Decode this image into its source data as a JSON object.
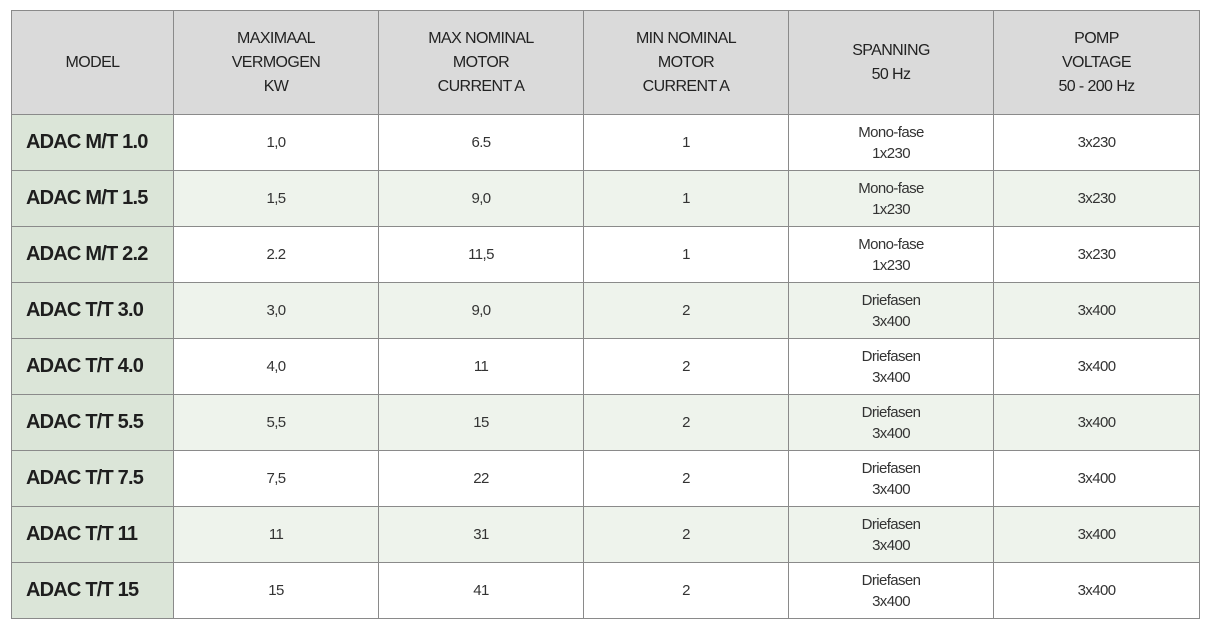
{
  "table": {
    "header": [
      "MODEL",
      "MAXIMAAL\nVERMOGEN\nKW",
      "MAX NOMINAL\nMOTOR\nCURRENT A",
      "MIN NOMINAL\nMOTOR\nCURRENT A",
      "SPANNING\n50 Hz",
      "POMP\nVOLTAGE\n50 - 200 Hz"
    ],
    "rows": [
      [
        "ADAC M/T 1.0",
        "1,0",
        "6.5",
        "1",
        "Mono-fase\n1x230",
        "3x230"
      ],
      [
        "ADAC M/T 1.5",
        "1,5",
        "9,0",
        "1",
        "Mono-fase\n1x230",
        "3x230"
      ],
      [
        "ADAC M/T 2.2",
        "2.2",
        "11,5",
        "1",
        "Mono-fase\n1x230",
        "3x230"
      ],
      [
        "ADAC T/T 3.0",
        "3,0",
        "9,0",
        "2",
        "Driefasen\n3x400",
        "3x400"
      ],
      [
        "ADAC T/T 4.0",
        "4,0",
        "11",
        "2",
        "Driefasen\n3x400",
        "3x400"
      ],
      [
        "ADAC T/T 5.5",
        "5,5",
        "15",
        "2",
        "Driefasen\n3x400",
        "3x400"
      ],
      [
        "ADAC T/T 7.5",
        "7,5",
        "22",
        "2",
        "Driefasen\n3x400",
        "3x400"
      ],
      [
        "ADAC T/T 11",
        "11",
        "31",
        "2",
        "Driefasen\n3x400",
        "3x400"
      ],
      [
        "ADAC T/T 15",
        "15",
        "41",
        "2",
        "Driefasen\n3x400",
        "3x400"
      ]
    ]
  }
}
